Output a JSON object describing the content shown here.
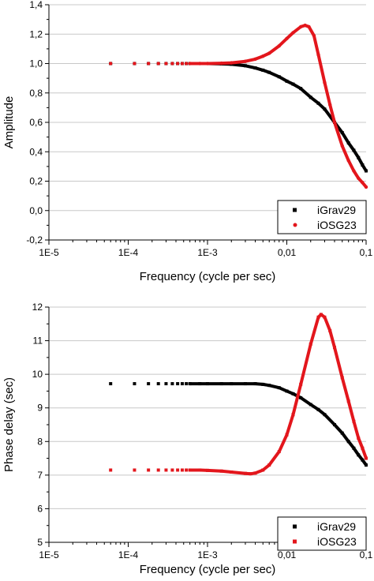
{
  "chart_data": [
    {
      "type": "scatter",
      "xscale": "log",
      "xlim": [
        1e-05,
        0.1
      ],
      "ylim": [
        -0.2,
        1.4
      ],
      "xlabel": "Frequency (cycle per sec)",
      "ylabel": "Amplitude",
      "x_ticks": [
        "1E-5",
        "1E-4",
        "1E-3",
        "0,01",
        "0,1"
      ],
      "y_ticks": [
        "-0,2",
        "0,0",
        "0,2",
        "0,4",
        "0,6",
        "0,8",
        "1,0",
        "1,2",
        "1,4"
      ],
      "grid": "horizontal",
      "legend_position": "bottom-right",
      "series": [
        {
          "name": "iGrav29",
          "color": "#000000",
          "marker": "square",
          "points": [
            [
              6e-05,
              1.0
            ],
            [
              0.00012,
              1.0
            ],
            [
              0.00018,
              1.0
            ],
            [
              0.00024,
              1.0
            ],
            [
              0.0003,
              1.0
            ],
            [
              0.00036,
              1.0
            ],
            [
              0.00042,
              1.0
            ],
            [
              0.00048,
              1.0
            ],
            [
              0.00054,
              1.0
            ],
            [
              0.0006,
              1.0
            ],
            [
              0.0008,
              1.0
            ],
            [
              0.001,
              1.0
            ],
            [
              0.0015,
              0.998
            ],
            [
              0.002,
              0.995
            ],
            [
              0.003,
              0.985
            ],
            [
              0.004,
              0.97
            ],
            [
              0.005,
              0.955
            ],
            [
              0.006,
              0.94
            ],
            [
              0.008,
              0.91
            ],
            [
              0.01,
              0.88
            ],
            [
              0.012,
              0.86
            ],
            [
              0.015,
              0.83
            ],
            [
              0.02,
              0.77
            ],
            [
              0.025,
              0.73
            ],
            [
              0.03,
              0.69
            ],
            [
              0.04,
              0.6
            ],
            [
              0.05,
              0.53
            ],
            [
              0.06,
              0.46
            ],
            [
              0.07,
              0.41
            ],
            [
              0.08,
              0.36
            ],
            [
              0.09,
              0.31
            ],
            [
              0.1,
              0.27
            ]
          ]
        },
        {
          "name": "iOSG23",
          "color": "#e3161c",
          "marker": "circle",
          "points": [
            [
              6e-05,
              1.0
            ],
            [
              0.00012,
              1.0
            ],
            [
              0.00018,
              1.0
            ],
            [
              0.00024,
              1.0
            ],
            [
              0.0003,
              1.0
            ],
            [
              0.00036,
              1.0
            ],
            [
              0.00042,
              1.0
            ],
            [
              0.00048,
              1.0
            ],
            [
              0.00054,
              1.0
            ],
            [
              0.0006,
              1.0
            ],
            [
              0.0008,
              1.0
            ],
            [
              0.001,
              1.0
            ],
            [
              0.0015,
              1.002
            ],
            [
              0.002,
              1.005
            ],
            [
              0.003,
              1.015
            ],
            [
              0.004,
              1.03
            ],
            [
              0.005,
              1.05
            ],
            [
              0.006,
              1.07
            ],
            [
              0.008,
              1.12
            ],
            [
              0.01,
              1.17
            ],
            [
              0.012,
              1.21
            ],
            [
              0.015,
              1.25
            ],
            [
              0.017,
              1.26
            ],
            [
              0.019,
              1.25
            ],
            [
              0.022,
              1.19
            ],
            [
              0.025,
              1.06
            ],
            [
              0.03,
              0.87
            ],
            [
              0.035,
              0.72
            ],
            [
              0.04,
              0.6
            ],
            [
              0.05,
              0.44
            ],
            [
              0.06,
              0.34
            ],
            [
              0.07,
              0.27
            ],
            [
              0.08,
              0.22
            ],
            [
              0.09,
              0.19
            ],
            [
              0.1,
              0.16
            ]
          ]
        }
      ]
    },
    {
      "type": "scatter",
      "xscale": "log",
      "xlim": [
        1e-05,
        0.1
      ],
      "ylim": [
        5,
        12
      ],
      "xlabel": "Frequency (cycle per sec)",
      "ylabel": "Phase delay (sec)",
      "x_ticks": [
        "1E-5",
        "1E-4",
        "1E-3",
        "0,01",
        "0,1"
      ],
      "y_ticks": [
        "5",
        "6",
        "7",
        "8",
        "9",
        "10",
        "11",
        "12"
      ],
      "grid": "horizontal",
      "legend_position": "bottom-right",
      "series": [
        {
          "name": "iGrav29",
          "color": "#000000",
          "marker": "square",
          "points": [
            [
              6e-05,
              9.72
            ],
            [
              0.00012,
              9.72
            ],
            [
              0.00018,
              9.72
            ],
            [
              0.00024,
              9.72
            ],
            [
              0.0003,
              9.72
            ],
            [
              0.00036,
              9.72
            ],
            [
              0.00042,
              9.72
            ],
            [
              0.00048,
              9.72
            ],
            [
              0.00054,
              9.72
            ],
            [
              0.0006,
              9.72
            ],
            [
              0.0008,
              9.72
            ],
            [
              0.001,
              9.72
            ],
            [
              0.0015,
              9.72
            ],
            [
              0.002,
              9.72
            ],
            [
              0.003,
              9.72
            ],
            [
              0.004,
              9.72
            ],
            [
              0.005,
              9.7
            ],
            [
              0.006,
              9.67
            ],
            [
              0.008,
              9.6
            ],
            [
              0.01,
              9.5
            ],
            [
              0.012,
              9.42
            ],
            [
              0.015,
              9.3
            ],
            [
              0.02,
              9.1
            ],
            [
              0.025,
              8.95
            ],
            [
              0.03,
              8.8
            ],
            [
              0.04,
              8.5
            ],
            [
              0.05,
              8.25
            ],
            [
              0.06,
              8.0
            ],
            [
              0.07,
              7.8
            ],
            [
              0.08,
              7.6
            ],
            [
              0.09,
              7.45
            ],
            [
              0.1,
              7.3
            ]
          ]
        },
        {
          "name": "iOSG23",
          "color": "#e3161c",
          "marker": "square",
          "points": [
            [
              6e-05,
              7.15
            ],
            [
              0.00012,
              7.15
            ],
            [
              0.00018,
              7.15
            ],
            [
              0.00024,
              7.15
            ],
            [
              0.0003,
              7.15
            ],
            [
              0.00036,
              7.15
            ],
            [
              0.00042,
              7.15
            ],
            [
              0.00048,
              7.15
            ],
            [
              0.00054,
              7.15
            ],
            [
              0.0006,
              7.15
            ],
            [
              0.0008,
              7.15
            ],
            [
              0.001,
              7.14
            ],
            [
              0.0015,
              7.12
            ],
            [
              0.002,
              7.09
            ],
            [
              0.003,
              7.05
            ],
            [
              0.0035,
              7.04
            ],
            [
              0.004,
              7.06
            ],
            [
              0.005,
              7.15
            ],
            [
              0.006,
              7.3
            ],
            [
              0.008,
              7.7
            ],
            [
              0.01,
              8.2
            ],
            [
              0.012,
              8.8
            ],
            [
              0.015,
              9.7
            ],
            [
              0.02,
              10.9
            ],
            [
              0.025,
              11.7
            ],
            [
              0.027,
              11.78
            ],
            [
              0.03,
              11.7
            ],
            [
              0.035,
              11.3
            ],
            [
              0.04,
              10.8
            ],
            [
              0.05,
              9.9
            ],
            [
              0.06,
              9.2
            ],
            [
              0.07,
              8.6
            ],
            [
              0.08,
              8.1
            ],
            [
              0.09,
              7.8
            ],
            [
              0.1,
              7.5
            ]
          ]
        }
      ]
    }
  ]
}
